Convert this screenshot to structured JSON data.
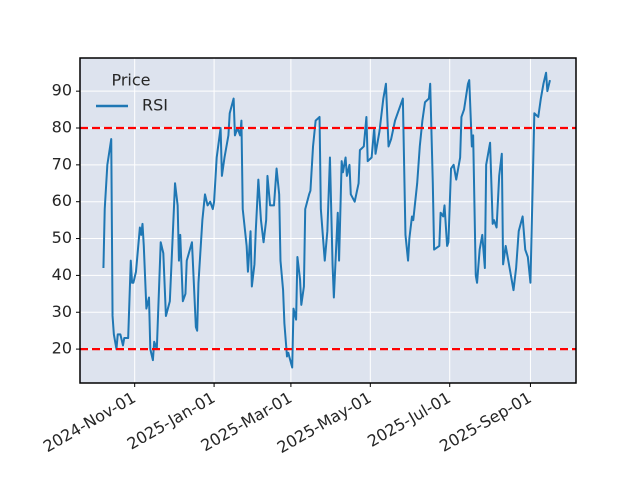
{
  "chart_data": {
    "type": "line",
    "legend_title": "Price",
    "legend": "upper left",
    "grid": true,
    "x": [
      "2024-10-08",
      "2024-10-09",
      "2024-10-11",
      "2024-10-14",
      "2024-10-15",
      "2024-10-16",
      "2024-10-18",
      "2024-10-19",
      "2024-10-21",
      "2024-10-23",
      "2024-10-24",
      "2024-10-27",
      "2024-10-29",
      "2024-10-30",
      "2024-10-31",
      "2024-11-02",
      "2024-11-05",
      "2024-11-06",
      "2024-11-07",
      "2024-11-08",
      "2024-11-10",
      "2024-11-12",
      "2024-11-13",
      "2024-11-15",
      "2024-11-16",
      "2024-11-18",
      "2024-11-21",
      "2024-11-23",
      "2024-11-25",
      "2024-11-28",
      "2024-11-30",
      "2024-12-02",
      "2024-12-04",
      "2024-12-05",
      "2024-12-06",
      "2024-12-08",
      "2024-12-10",
      "2024-12-11",
      "2024-12-15",
      "2024-12-18",
      "2024-12-19",
      "2024-12-20",
      "2024-12-23",
      "2024-12-25",
      "2024-12-27",
      "2024-12-29",
      "2024-12-31",
      "2025-01-01",
      "2025-01-03",
      "2025-01-06",
      "2025-01-07",
      "2025-01-09",
      "2025-01-12",
      "2025-01-13",
      "2025-01-16",
      "2025-01-17",
      "2025-01-19",
      "2025-01-21",
      "2025-01-22",
      "2025-01-23",
      "2025-01-26",
      "2025-01-27",
      "2025-01-29",
      "2025-01-30",
      "2025-02-01",
      "2025-02-02",
      "2025-02-04",
      "2025-02-06",
      "2025-02-08",
      "2025-02-10",
      "2025-02-11",
      "2025-02-13",
      "2025-02-16",
      "2025-02-18",
      "2025-02-20",
      "2025-02-21",
      "2025-02-23",
      "2025-02-24",
      "2025-02-26",
      "2025-02-27",
      "2025-03-02",
      "2025-03-03",
      "2025-03-05",
      "2025-03-06",
      "2025-03-08",
      "2025-03-09",
      "2025-03-11",
      "2025-03-12",
      "2025-03-15",
      "2025-03-16",
      "2025-03-18",
      "2025-03-20",
      "2025-03-23",
      "2025-03-24",
      "2025-03-27",
      "2025-03-29",
      "2025-03-31",
      "2025-04-02",
      "2025-04-03",
      "2025-04-06",
      "2025-04-07",
      "2025-04-09",
      "2025-04-10",
      "2025-04-12",
      "2025-04-13",
      "2025-04-15",
      "2025-04-16",
      "2025-04-19",
      "2025-04-22",
      "2025-04-23",
      "2025-04-26",
      "2025-04-28",
      "2025-04-29",
      "2025-05-02",
      "2025-05-04",
      "2025-05-05",
      "2025-05-08",
      "2025-05-11",
      "2025-05-13",
      "2025-05-15",
      "2025-05-17",
      "2025-05-20",
      "2025-05-23",
      "2025-05-26",
      "2025-05-28",
      "2025-05-30",
      "2025-05-31",
      "2025-06-02",
      "2025-06-03",
      "2025-06-06",
      "2025-06-08",
      "2025-06-10",
      "2025-06-12",
      "2025-06-15",
      "2025-06-16",
      "2025-06-18",
      "2025-06-19",
      "2025-06-23",
      "2025-06-24",
      "2025-06-26",
      "2025-06-27",
      "2025-06-29",
      "2025-06-30",
      "2025-07-02",
      "2025-07-04",
      "2025-07-06",
      "2025-07-09",
      "2025-07-10",
      "2025-07-12",
      "2025-07-15",
      "2025-07-16",
      "2025-07-18",
      "2025-07-19",
      "2025-07-21",
      "2025-07-22",
      "2025-07-24",
      "2025-07-26",
      "2025-07-28",
      "2025-07-29",
      "2025-08-01",
      "2025-08-03",
      "2025-08-04",
      "2025-08-06",
      "2025-08-08",
      "2025-08-10",
      "2025-08-11",
      "2025-08-13",
      "2025-08-16",
      "2025-08-19",
      "2025-08-21",
      "2025-08-23",
      "2025-08-26",
      "2025-08-28",
      "2025-08-30",
      "2025-09-01",
      "2025-09-04",
      "2025-09-07",
      "2025-09-09",
      "2025-09-11",
      "2025-09-13",
      "2025-09-14",
      "2025-09-16"
    ],
    "series": [
      {
        "name": "RSI",
        "color": "#1f77b4",
        "values": [
          42,
          58,
          70,
          77,
          29,
          24,
          20,
          24,
          24,
          21,
          23,
          23,
          44,
          38,
          38,
          41,
          53,
          51,
          54,
          48,
          31,
          34,
          20,
          17,
          22,
          20,
          49,
          46,
          29,
          33,
          49,
          65,
          59,
          44,
          51,
          33,
          35,
          44,
          49,
          26,
          25,
          38,
          55,
          62,
          59,
          60,
          58,
          60,
          72,
          80,
          67,
          72,
          78,
          84,
          88,
          78,
          80,
          78,
          82,
          58,
          48,
          41,
          52,
          37,
          43,
          52,
          66,
          55,
          49,
          55,
          67,
          59,
          59,
          69,
          62,
          44,
          36,
          27,
          18,
          19,
          15,
          31,
          28,
          45,
          39,
          32,
          37,
          58,
          62,
          63,
          75,
          82,
          83,
          58,
          44,
          52,
          72,
          43,
          34,
          57,
          44,
          71,
          68,
          72,
          67,
          70,
          62,
          60,
          65,
          74,
          75,
          83,
          71,
          72,
          80,
          73,
          79,
          88,
          92,
          75,
          77,
          82,
          85,
          88,
          51,
          44,
          50,
          56,
          55,
          65,
          75,
          82,
          87,
          88,
          92,
          65,
          47,
          48,
          57,
          56,
          59,
          48,
          49,
          69,
          70,
          66,
          72,
          83,
          85,
          92,
          93,
          75,
          78,
          40,
          38,
          47,
          51,
          42,
          70,
          76,
          54,
          55,
          53,
          67,
          73,
          43,
          48,
          42,
          36,
          42,
          52,
          56,
          47,
          45,
          38,
          84,
          83,
          88,
          92,
          95,
          90,
          93
        ]
      }
    ],
    "hlines": [
      {
        "value": 80,
        "color": "#ff0000",
        "style": "dashed"
      },
      {
        "value": 20,
        "color": "#ff0000",
        "style": "dashed"
      }
    ],
    "xlim": [
      "2024-09-20",
      "2025-10-06"
    ],
    "xticks": [
      {
        "value": "2024-11-01",
        "label": "2024-Nov-01"
      },
      {
        "value": "2025-01-01",
        "label": "2025-Jan-01"
      },
      {
        "value": "2025-03-01",
        "label": "2025-Mar-01"
      },
      {
        "value": "2025-05-01",
        "label": "2025-May-01"
      },
      {
        "value": "2025-07-01",
        "label": "2025-Jul-01"
      },
      {
        "value": "2025-09-01",
        "label": "2025-Sep-01"
      }
    ],
    "ylim": [
      10.8,
      99
    ],
    "yticks": [
      20,
      30,
      40,
      50,
      60,
      70,
      80,
      90
    ]
  }
}
